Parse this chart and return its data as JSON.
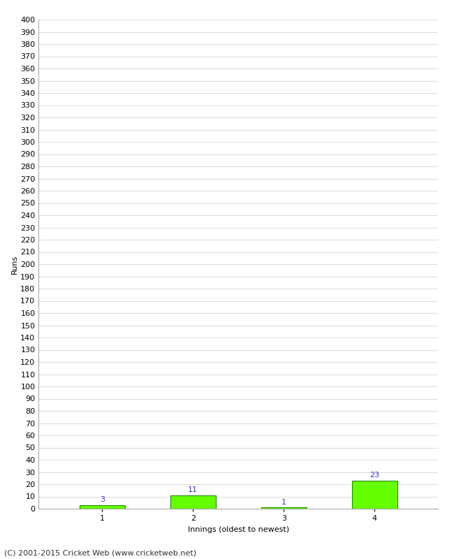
{
  "categories": [
    1,
    2,
    3,
    4
  ],
  "values": [
    3,
    11,
    1,
    23
  ],
  "bar_color": "#66ff00",
  "bar_edge_color": "#228800",
  "label_color": "#3333cc",
  "xlabel": "Innings (oldest to newest)",
  "ylabel": "Runs",
  "ylim": [
    0,
    400
  ],
  "background_color": "#ffffff",
  "grid_color": "#cccccc",
  "footer_text": "(C) 2001-2015 Cricket Web (www.cricketweb.net)",
  "label_fontsize": 8,
  "axis_fontsize": 8,
  "footer_fontsize": 8,
  "ylabel_fontsize": 8
}
